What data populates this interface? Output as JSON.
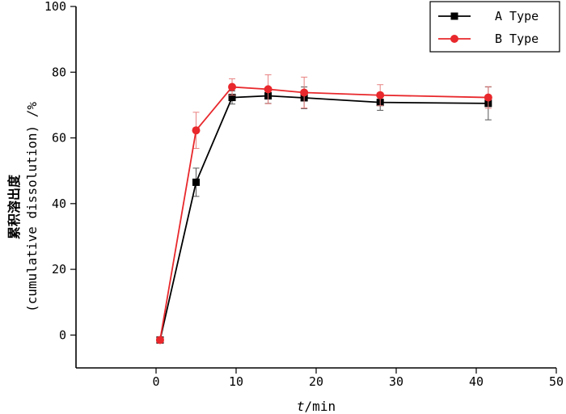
{
  "chart_data": {
    "type": "line",
    "title": "",
    "xlabel_italic": "t",
    "xlabel_rest": "/min",
    "ylabel_line1": "累积溶出度",
    "ylabel_line2": "(cumulative dissolution) /%",
    "xlim": [
      -10,
      50
    ],
    "ylim": [
      -10,
      100
    ],
    "xticks": [
      0,
      10,
      20,
      30,
      40,
      50
    ],
    "yticks": [
      0,
      20,
      40,
      60,
      80,
      100
    ],
    "grid": false,
    "legend_position": "top-right",
    "series": [
      {
        "name": "A Type",
        "color": "#000000",
        "marker": "square",
        "x": [
          0.5,
          5,
          9.5,
          14,
          18.5,
          28,
          41.5
        ],
        "y": [
          -1.5,
          46.5,
          72.3,
          72.8,
          72.2,
          70.8,
          70.5
        ],
        "err": [
          0.8,
          4.3,
          2.0,
          2.3,
          3.3,
          2.4,
          5.0
        ]
      },
      {
        "name": "B Type",
        "color": "#e8282c",
        "marker": "circle",
        "x": [
          0.5,
          5,
          9.5,
          14,
          18.5,
          28,
          41.5
        ],
        "y": [
          -1.5,
          62.3,
          75.5,
          74.8,
          73.8,
          73.0,
          72.3
        ],
        "err": [
          0.8,
          5.5,
          2.5,
          4.4,
          4.7,
          3.2,
          3.3
        ]
      }
    ]
  }
}
